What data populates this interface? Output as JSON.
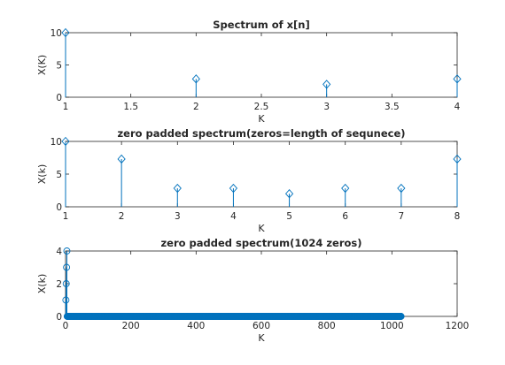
{
  "colors": {
    "series": "#0072bd",
    "axes": "#262626",
    "background": "#ffffff"
  },
  "chart_data": [
    {
      "type": "stem",
      "title": "Spectrum of x[n]",
      "xlabel": "K",
      "ylabel": "X(K)",
      "xlim": [
        1,
        4
      ],
      "ylim": [
        0,
        10
      ],
      "xticks": [
        1,
        1.5,
        2,
        2.5,
        3,
        3.5,
        4
      ],
      "xtick_labels": [
        "1",
        "1.5",
        "2",
        "2.5",
        "3",
        "3.5",
        "4"
      ],
      "yticks": [
        0,
        5,
        10
      ],
      "ytick_labels": [
        "0",
        "5",
        "10"
      ],
      "marker": "diamond",
      "x": [
        1,
        2,
        3,
        4
      ],
      "y": [
        10,
        2.83,
        2,
        2.83
      ]
    },
    {
      "type": "stem",
      "title": "zero padded spectrum(zeros=length of sequnece)",
      "xlabel": "K",
      "ylabel": "X(k)",
      "xlim": [
        1,
        8
      ],
      "ylim": [
        0,
        10
      ],
      "xticks": [
        1,
        2,
        3,
        4,
        5,
        6,
        7,
        8
      ],
      "xtick_labels": [
        "1",
        "2",
        "3",
        "4",
        "5",
        "6",
        "7",
        "8"
      ],
      "yticks": [
        0,
        5,
        10
      ],
      "ytick_labels": [
        "0",
        "5",
        "10"
      ],
      "marker": "diamond",
      "x": [
        1,
        2,
        3,
        4,
        5,
        6,
        7,
        8
      ],
      "y": [
        10,
        7.3,
        2.83,
        2.83,
        2,
        2.83,
        2.83,
        7.3
      ]
    },
    {
      "type": "stem",
      "title": "zero padded spectrum(1024 zeros)",
      "xlabel": "K",
      "ylabel": "X(k)",
      "xlim": [
        0,
        1200
      ],
      "ylim": [
        0,
        4
      ],
      "xticks": [
        0,
        200,
        400,
        600,
        800,
        1000,
        1200
      ],
      "xtick_labels": [
        "0",
        "200",
        "400",
        "600",
        "800",
        "1000",
        "1200"
      ],
      "yticks": [
        0,
        2,
        4
      ],
      "ytick_labels": [
        "0",
        "2",
        "4"
      ],
      "marker": "circle",
      "x": [
        1,
        2,
        3,
        4
      ],
      "y": [
        1,
        2,
        3,
        4
      ],
      "zero_samples_range": [
        5,
        1028
      ]
    }
  ]
}
